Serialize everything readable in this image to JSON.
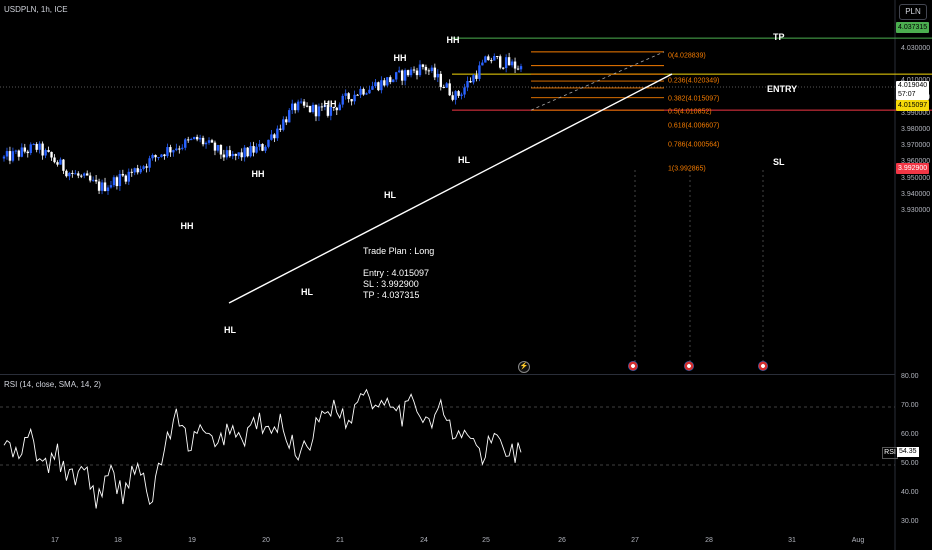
{
  "header": {
    "symbol_line": "USDPLN, 1h, ICE",
    "currency_button": "PLN"
  },
  "price_axis": {
    "ticks": [
      "4.030000",
      "4.010000",
      "4.000000",
      "3.990000",
      "3.980000",
      "3.970000",
      "3.960000",
      "3.950000",
      "3.940000",
      "3.930000"
    ],
    "tags": {
      "tp": "4.037315",
      "last": "4.019040",
      "countdown": "57:07",
      "entry": "4.015097",
      "sl": "3.992900"
    }
  },
  "time_axis": [
    "17",
    "18",
    "19",
    "20",
    "21",
    "24",
    "25",
    "26",
    "27",
    "28",
    "31",
    "Aug"
  ],
  "annotations": {
    "highs": "HH",
    "lows": "HL"
  },
  "fib_levels": [
    {
      "label": "0(4.028839)",
      "value": 4.028839
    },
    {
      "label": "0.236(4.020349)",
      "value": 4.020349
    },
    {
      "label": "0.382(4.015097)",
      "value": 4.015097
    },
    {
      "label": "0.5(4.010852)",
      "value": 4.010852
    },
    {
      "label": "0.618(4.006607)",
      "value": 4.006607
    },
    {
      "label": "0.786(4.000564)",
      "value": 4.000564
    },
    {
      "label": "1(3.992865)",
      "value": 3.992865
    }
  ],
  "trade_labels": {
    "tp": "TP",
    "entry": "ENTRY",
    "sl": "SL"
  },
  "trade_plan": {
    "title": "Trade Plan : Long",
    "entry": "Entry :  4.015097",
    "sl": "SL : 3.992900",
    "tp": "TP : 4.037315"
  },
  "rsi": {
    "legend": "RSI (14, close, SMA, 14, 2)",
    "name": "RSI",
    "value": "54.35",
    "axis_ticks": [
      "80.00",
      "70.00",
      "60.00",
      "50.00",
      "40.00",
      "30.00"
    ]
  },
  "colors": {
    "up": "#2962ff",
    "down": "#ffffff",
    "tp": "#4caf50",
    "entry": "#f5d90a",
    "sl": "#f23645",
    "fib": "#f57c00",
    "trendline": "#ffffff"
  },
  "chart_data": [
    {
      "type": "candlestick",
      "title": "USDPLN, 1h, ICE",
      "y_range": [
        3.929,
        4.042
      ],
      "x_categories": [
        "17",
        "18",
        "19",
        "20",
        "21",
        "24",
        "25",
        "26",
        "27",
        "28",
        "31",
        "Aug"
      ],
      "approx_close_path": [
        {
          "t": "17",
          "v": 3.963
        },
        {
          "t": "17",
          "v": 3.97
        },
        {
          "t": "18",
          "v": 3.955
        },
        {
          "t": "18",
          "v": 3.945
        },
        {
          "t": "19",
          "v": 3.955
        },
        {
          "t": "19",
          "v": 3.968
        },
        {
          "t": "20",
          "v": 3.975
        },
        {
          "t": "20",
          "v": 3.963
        },
        {
          "t": "20",
          "v": 3.97
        },
        {
          "t": "21",
          "v": 3.995
        },
        {
          "t": "21",
          "v": 3.992
        },
        {
          "t": "21",
          "v": 4.005
        },
        {
          "t": "24",
          "v": 4.012
        },
        {
          "t": "24",
          "v": 4.02
        },
        {
          "t": "24",
          "v": 4.001
        },
        {
          "t": "25",
          "v": 4.025
        },
        {
          "t": "25",
          "v": 4.019
        }
      ],
      "horizontal_lines": {
        "tp": 4.037315,
        "entry": 4.015097,
        "sl": 3.9929
      }
    },
    {
      "type": "line",
      "title": "RSI (14, close, SMA, 14, 2)",
      "y_range": [
        30,
        80
      ],
      "bands": [
        70,
        50
      ],
      "approx_values": [
        58,
        52,
        60,
        48,
        54,
        44,
        50,
        38,
        47,
        40,
        52,
        36,
        55,
        66,
        57,
        62,
        55,
        64,
        58,
        66,
        60,
        65,
        54,
        58,
        67,
        72,
        63,
        78,
        70,
        75,
        67,
        72,
        65,
        70,
        58,
        62,
        52,
        60,
        55,
        54.35
      ]
    }
  ]
}
